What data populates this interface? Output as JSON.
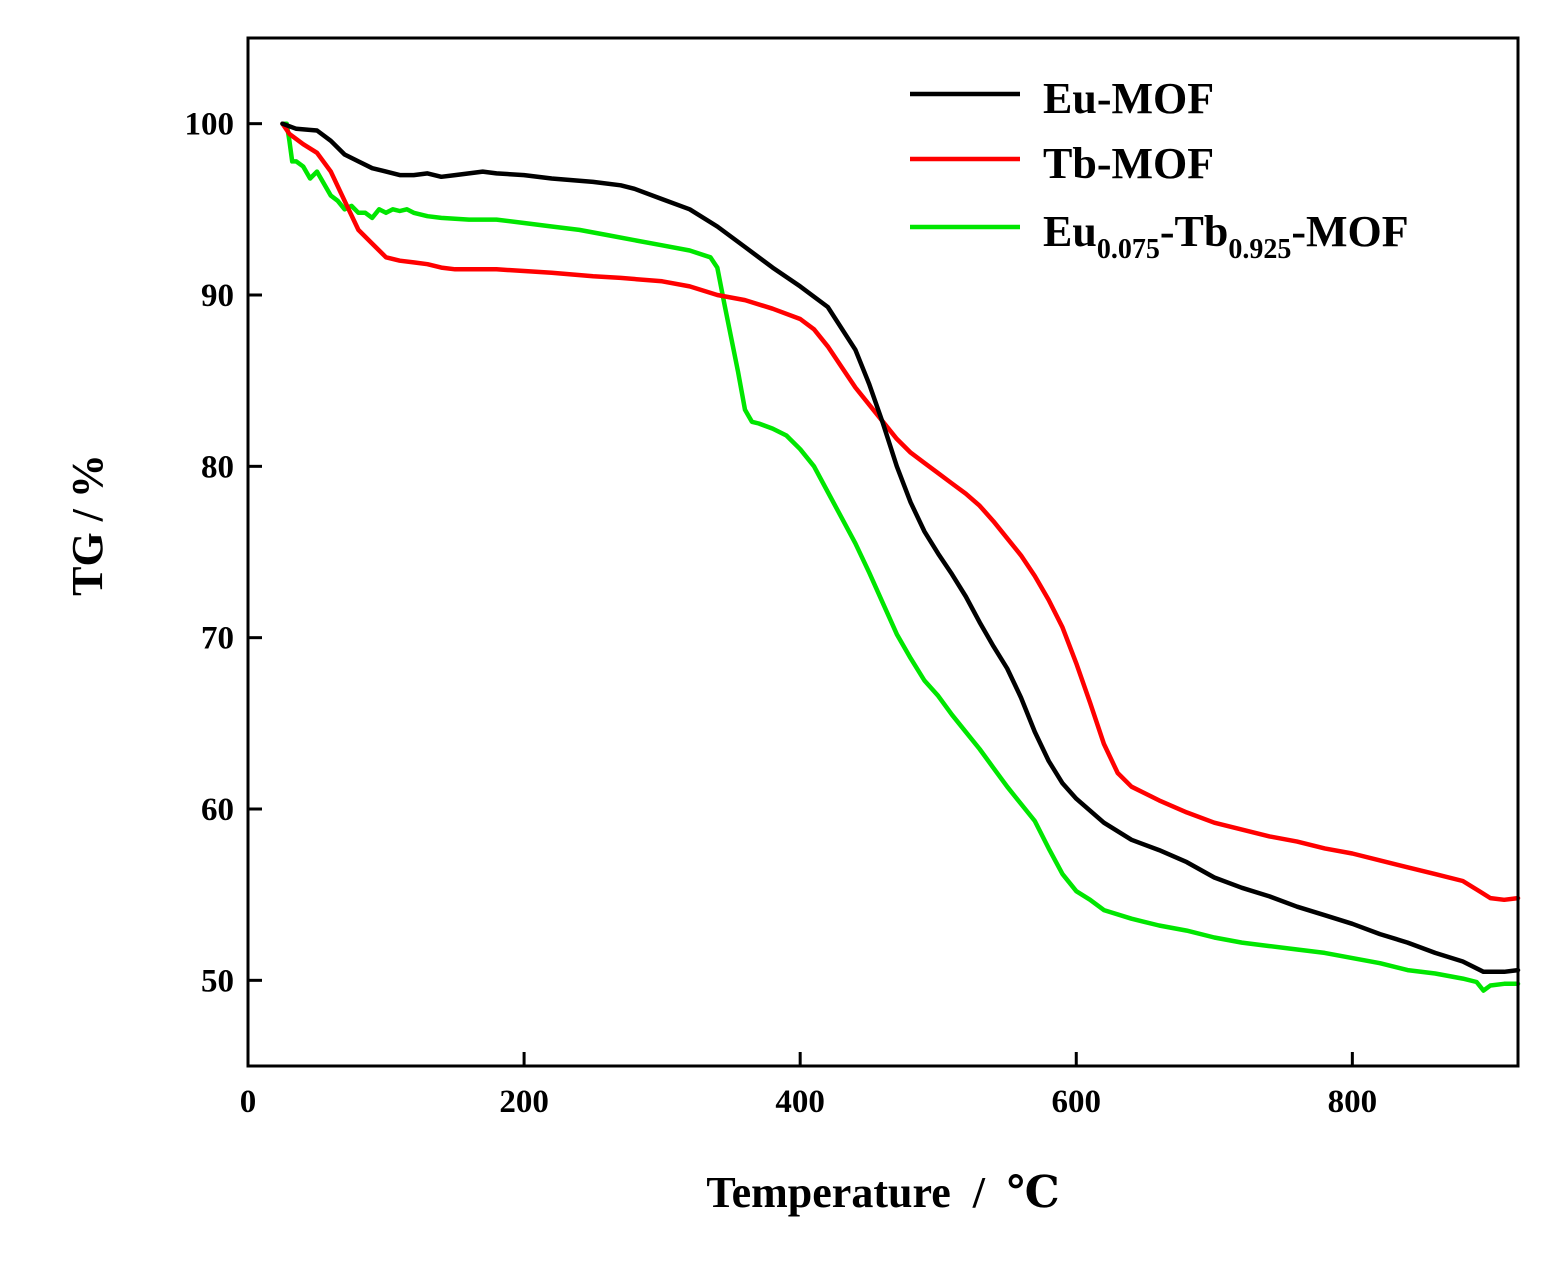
{
  "chart_data": {
    "type": "line",
    "title": "",
    "xlabel": "Temperature  /  ℃",
    "ylabel": "TG / %",
    "xlim": [
      0,
      920
    ],
    "ylim": [
      45,
      105
    ],
    "xticks": [
      0,
      200,
      400,
      600,
      800
    ],
    "yticks": [
      50,
      60,
      70,
      80,
      90,
      100
    ],
    "grid": false,
    "legend_position": "top-right",
    "series": [
      {
        "name": "Eu-MOF",
        "legend_base": "Eu-MOF",
        "color": "#000000",
        "x": [
          25,
          35,
          50,
          60,
          70,
          80,
          90,
          100,
          110,
          120,
          130,
          140,
          150,
          160,
          170,
          180,
          200,
          220,
          250,
          270,
          280,
          300,
          320,
          340,
          360,
          380,
          400,
          420,
          440,
          450,
          460,
          470,
          480,
          490,
          500,
          510,
          520,
          530,
          540,
          550,
          560,
          570,
          580,
          590,
          600,
          620,
          640,
          660,
          680,
          700,
          720,
          740,
          760,
          780,
          800,
          820,
          840,
          860,
          880,
          895,
          900,
          910,
          920
        ],
        "y": [
          100,
          99.7,
          99.6,
          99.0,
          98.2,
          97.8,
          97.4,
          97.2,
          97.0,
          97.0,
          97.1,
          96.9,
          97.0,
          97.1,
          97.2,
          97.1,
          97.0,
          96.8,
          96.6,
          96.4,
          96.2,
          95.6,
          95.0,
          94.0,
          92.8,
          91.6,
          90.5,
          89.3,
          86.8,
          84.8,
          82.5,
          80.0,
          77.9,
          76.2,
          74.9,
          73.7,
          72.4,
          70.9,
          69.5,
          68.2,
          66.5,
          64.5,
          62.8,
          61.5,
          60.6,
          59.2,
          58.2,
          57.6,
          56.9,
          56.0,
          55.4,
          54.9,
          54.3,
          53.8,
          53.3,
          52.7,
          52.2,
          51.6,
          51.1,
          50.5,
          50.5,
          50.5,
          50.6
        ]
      },
      {
        "name": "Tb-MOF",
        "legend_base": "Tb-MOF",
        "color": "#ff0000",
        "x": [
          25,
          30,
          40,
          50,
          60,
          70,
          80,
          90,
          100,
          110,
          120,
          130,
          140,
          150,
          160,
          180,
          200,
          220,
          250,
          270,
          300,
          320,
          340,
          360,
          380,
          400,
          410,
          420,
          430,
          440,
          450,
          460,
          470,
          480,
          490,
          500,
          510,
          520,
          530,
          540,
          550,
          560,
          570,
          580,
          590,
          600,
          610,
          620,
          630,
          640,
          660,
          680,
          700,
          720,
          740,
          760,
          780,
          800,
          820,
          840,
          860,
          880,
          890,
          900,
          910,
          920
        ],
        "y": [
          100,
          99.4,
          98.8,
          98.3,
          97.2,
          95.5,
          93.8,
          93.0,
          92.2,
          92.0,
          91.9,
          91.8,
          91.6,
          91.5,
          91.5,
          91.5,
          91.4,
          91.3,
          91.1,
          91.0,
          90.8,
          90.5,
          90.0,
          89.7,
          89.2,
          88.6,
          88.0,
          87.0,
          85.8,
          84.6,
          83.6,
          82.6,
          81.6,
          80.8,
          80.2,
          79.6,
          79.0,
          78.4,
          77.7,
          76.8,
          75.8,
          74.8,
          73.6,
          72.2,
          70.6,
          68.5,
          66.2,
          63.8,
          62.1,
          61.3,
          60.5,
          59.8,
          59.2,
          58.8,
          58.4,
          58.1,
          57.7,
          57.4,
          57.0,
          56.6,
          56.2,
          55.8,
          55.3,
          54.8,
          54.7,
          54.8
        ]
      },
      {
        "name": "Eu0.075-Tb0.925-MOF",
        "legend_base": "Eu",
        "legend_sub1": "0.075",
        "legend_mid": "-Tb",
        "legend_sub2": "0.925",
        "legend_end": "-MOF",
        "color": "#00e600",
        "x": [
          25,
          28,
          30,
          32,
          35,
          40,
          45,
          50,
          55,
          60,
          65,
          70,
          75,
          80,
          85,
          90,
          95,
          100,
          105,
          110,
          115,
          120,
          130,
          140,
          160,
          180,
          200,
          220,
          240,
          260,
          280,
          300,
          320,
          335,
          340,
          345,
          350,
          355,
          360,
          365,
          370,
          380,
          390,
          400,
          410,
          420,
          430,
          440,
          450,
          460,
          470,
          480,
          490,
          500,
          510,
          520,
          530,
          540,
          550,
          560,
          570,
          580,
          590,
          600,
          610,
          620,
          640,
          660,
          680,
          700,
          720,
          740,
          760,
          780,
          800,
          820,
          840,
          860,
          880,
          890,
          895,
          900,
          910,
          920
        ],
        "y": [
          100,
          100,
          99.0,
          97.8,
          97.8,
          97.5,
          96.8,
          97.2,
          96.5,
          95.8,
          95.5,
          95.0,
          95.2,
          94.8,
          94.8,
          94.5,
          95.0,
          94.8,
          95.0,
          94.9,
          95.0,
          94.8,
          94.6,
          94.5,
          94.4,
          94.4,
          94.2,
          94.0,
          93.8,
          93.5,
          93.2,
          92.9,
          92.6,
          92.2,
          91.6,
          89.5,
          87.5,
          85.5,
          83.3,
          82.6,
          82.5,
          82.2,
          81.8,
          81.0,
          80.0,
          78.5,
          77.0,
          75.5,
          73.8,
          72.0,
          70.2,
          68.8,
          67.5,
          66.6,
          65.5,
          64.5,
          63.5,
          62.4,
          61.3,
          60.3,
          59.3,
          57.7,
          56.2,
          55.2,
          54.7,
          54.1,
          53.6,
          53.2,
          52.9,
          52.5,
          52.2,
          52.0,
          51.8,
          51.6,
          51.3,
          51.0,
          50.6,
          50.4,
          50.1,
          49.9,
          49.4,
          49.7,
          49.8,
          49.8
        ]
      }
    ]
  }
}
